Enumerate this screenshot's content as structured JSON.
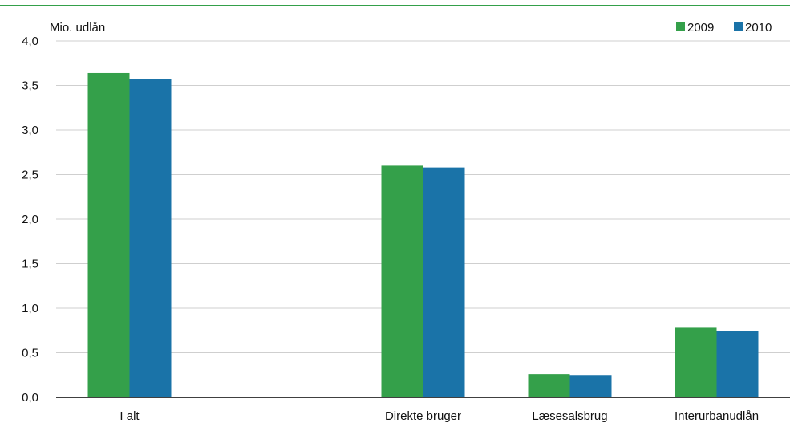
{
  "chart_data": {
    "type": "bar",
    "title": "",
    "xlabel": "",
    "ylabel": "Mio. udlån",
    "categories": [
      "I alt",
      "",
      "Direkte bruger",
      "Læsesalsbrug",
      "Interurbanudlån"
    ],
    "series": [
      {
        "name": "2009",
        "values": [
          3.64,
          null,
          2.6,
          0.26,
          0.78
        ],
        "color": "#34a04a"
      },
      {
        "name": "2010",
        "values": [
          3.57,
          null,
          2.58,
          0.25,
          0.74
        ],
        "color": "#1a73a8"
      }
    ],
    "ylim": [
      0,
      4
    ],
    "yticks": [
      "0,0",
      "0,5",
      "1,0",
      "1,5",
      "2,0",
      "2,5",
      "3,0",
      "3,5",
      "4,0"
    ],
    "grid": true,
    "legend_position": "top-right",
    "colors": {
      "top_rule": "#34a04a",
      "gridline": "#cfcfcf",
      "axis": "#000000"
    }
  }
}
